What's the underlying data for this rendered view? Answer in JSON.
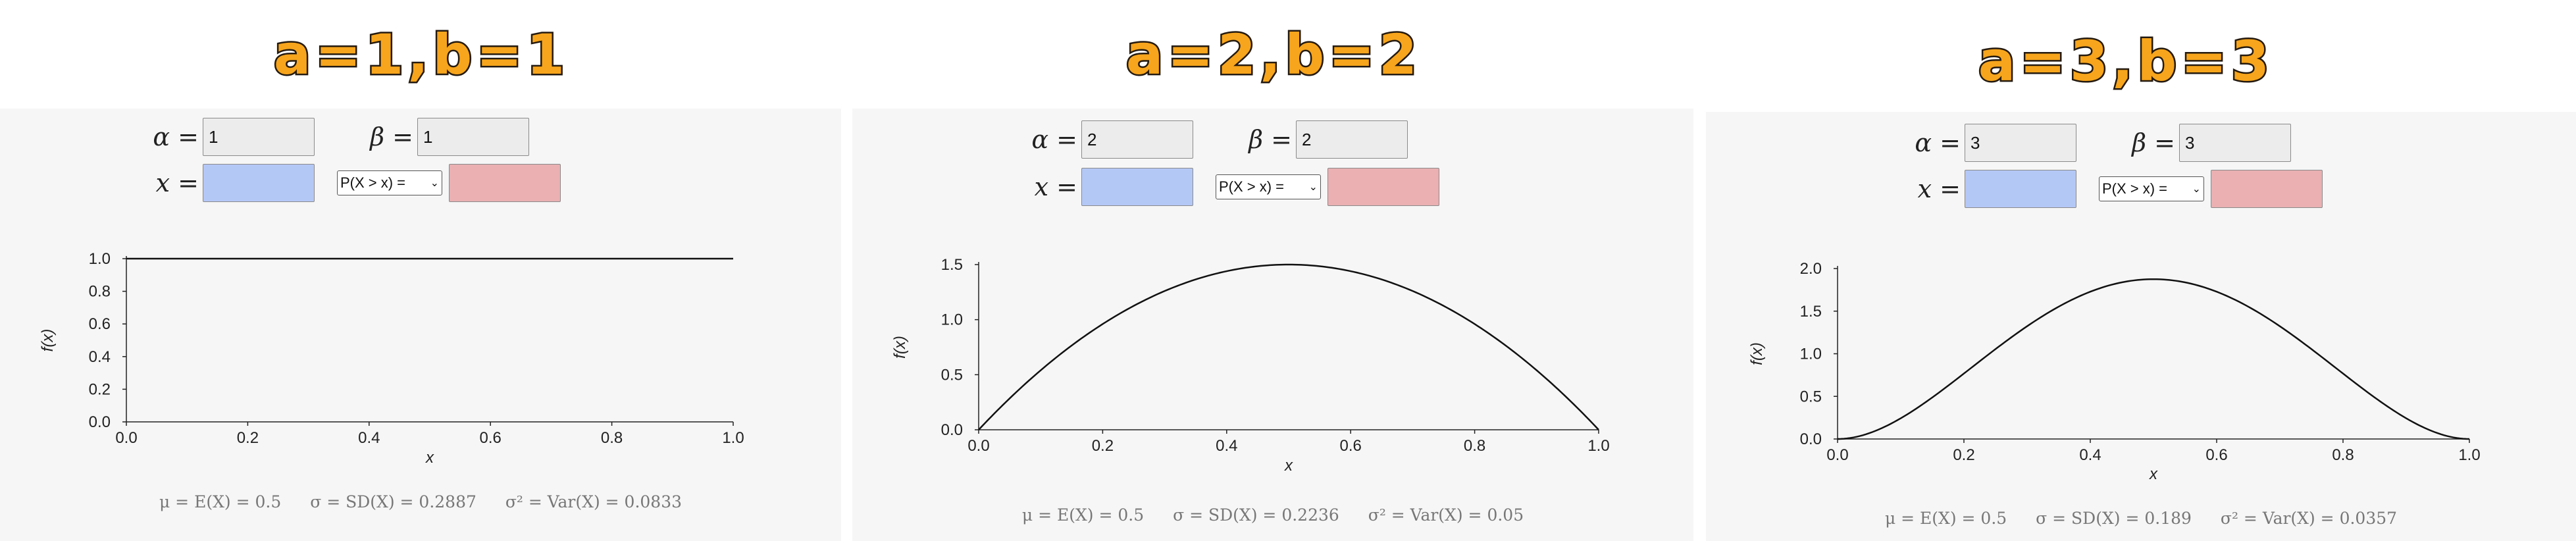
{
  "panels": [
    {
      "title": "a=1,b=1",
      "alpha_label": "α",
      "beta_label": "β",
      "x_label": "x",
      "eq": "=",
      "alpha_value": "1",
      "beta_value": "1",
      "x_value": "",
      "select_value": "P(X > x) =",
      "prob_value": "",
      "stats": {
        "mean": "μ = E(X) = 0.5",
        "sd": "σ = SD(X) = 0.2887",
        "var": "σ² = Var(X) = 0.0833"
      }
    },
    {
      "title": "a=2,b=2",
      "alpha_label": "α",
      "beta_label": "β",
      "x_label": "x",
      "eq": "=",
      "alpha_value": "2",
      "beta_value": "2",
      "x_value": "",
      "select_value": "P(X > x) =",
      "prob_value": "",
      "stats": {
        "mean": "μ = E(X) = 0.5",
        "sd": "σ = SD(X) = 0.2236",
        "var": "σ² = Var(X) = 0.05"
      }
    },
    {
      "title": "a=3,b=3",
      "alpha_label": "α",
      "beta_label": "β",
      "x_label": "x",
      "eq": "=",
      "alpha_value": "3",
      "beta_value": "3",
      "x_value": "",
      "select_value": "P(X > x) =",
      "prob_value": "",
      "stats": {
        "mean": "μ = E(X) = 0.5",
        "sd": "σ = SD(X) = 0.189",
        "var": "σ² = Var(X) = 0.0357"
      }
    }
  ],
  "chart_data": [
    {
      "type": "line",
      "distribution": "beta",
      "alpha": 1,
      "beta": 1,
      "xlabel": "x",
      "ylabel": "f(x)",
      "xlim": [
        0,
        1
      ],
      "ylim": [
        0,
        1
      ],
      "xticks": [
        "0.0",
        "0.2",
        "0.4",
        "0.6",
        "0.8",
        "1.0"
      ],
      "yticks": [
        "0.0",
        "0.2",
        "0.4",
        "0.6",
        "0.8",
        "1.0"
      ],
      "x": [
        0,
        0.25,
        0.5,
        0.75,
        1
      ],
      "y": [
        1,
        1,
        1,
        1,
        1
      ]
    },
    {
      "type": "line",
      "distribution": "beta",
      "alpha": 2,
      "beta": 2,
      "xlabel": "x",
      "ylabel": "f(x)",
      "xlim": [
        0,
        1
      ],
      "ylim": [
        0,
        1.5
      ],
      "xticks": [
        "0.0",
        "0.2",
        "0.4",
        "0.6",
        "0.8",
        "1.0"
      ],
      "yticks": [
        "0.0",
        "0.5",
        "1.0",
        "1.5"
      ],
      "x": [
        0,
        0.1,
        0.2,
        0.3,
        0.4,
        0.5,
        0.6,
        0.7,
        0.8,
        0.9,
        1
      ],
      "y": [
        0,
        0.54,
        0.96,
        1.26,
        1.44,
        1.5,
        1.44,
        1.26,
        0.96,
        0.54,
        0
      ]
    },
    {
      "type": "line",
      "distribution": "beta",
      "alpha": 3,
      "beta": 3,
      "xlabel": "x",
      "ylabel": "f(x)",
      "xlim": [
        0,
        1
      ],
      "ylim": [
        0,
        2
      ],
      "xticks": [
        "0.0",
        "0.2",
        "0.4",
        "0.6",
        "0.8",
        "1.0"
      ],
      "yticks": [
        "0.0",
        "0.5",
        "1.0",
        "1.5",
        "2.0"
      ],
      "x": [
        0,
        0.1,
        0.2,
        0.3,
        0.4,
        0.5,
        0.6,
        0.7,
        0.8,
        0.9,
        1
      ],
      "y": [
        0,
        0.243,
        0.768,
        1.323,
        1.728,
        1.875,
        1.728,
        1.323,
        0.768,
        0.243,
        0
      ]
    }
  ]
}
